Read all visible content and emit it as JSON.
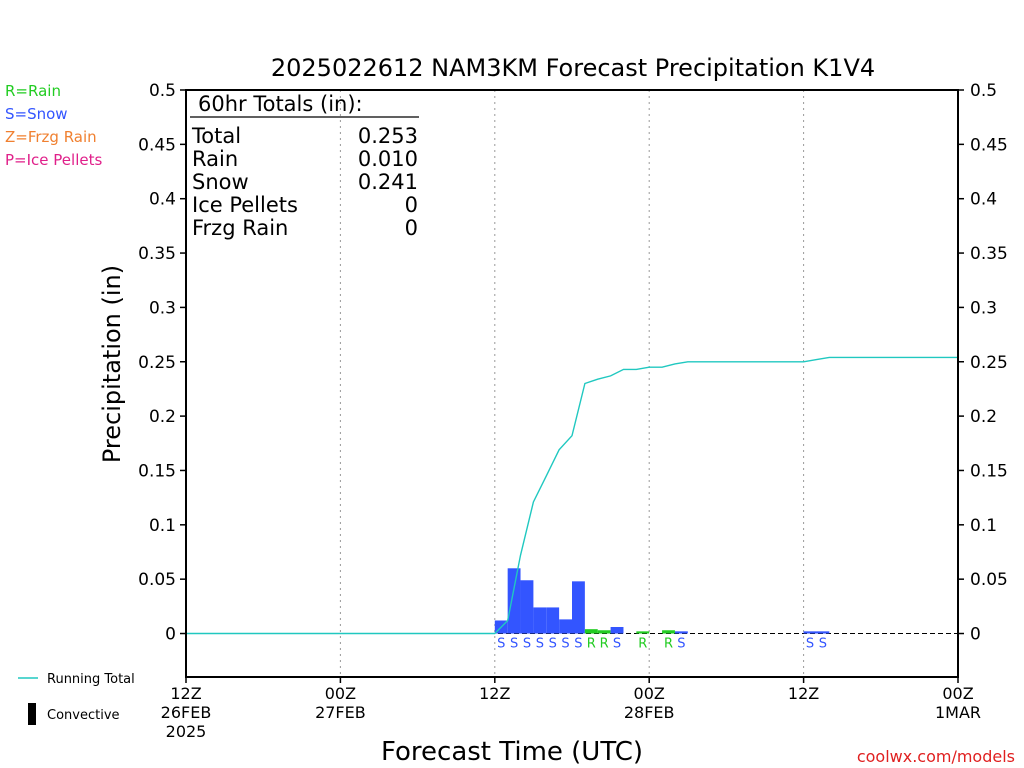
{
  "chart_data": {
    "type": "bar",
    "title": "2025022612 NAM3KM Forecast Precipitation K1V4",
    "ylabel": "Precipitation (in)",
    "xlabel": "Forecast Time (UTC)",
    "ylim": [
      -0.04,
      0.5
    ],
    "xlim_hours": [
      0,
      60
    ],
    "yticks": [
      "0.5",
      "0.45",
      "0.4",
      "0.35",
      "0.3",
      "0.25",
      "0.2",
      "0.15",
      "0.1",
      "0.05",
      "0"
    ],
    "ytick_values": [
      0.5,
      0.45,
      0.4,
      0.35,
      0.3,
      0.25,
      0.2,
      0.15,
      0.1,
      0.05,
      0
    ],
    "xticks": [
      {
        "hour": 0,
        "lines": [
          "12Z",
          "26FEB",
          "2025"
        ]
      },
      {
        "hour": 12,
        "lines": [
          "00Z",
          "27FEB"
        ]
      },
      {
        "hour": 24,
        "lines": [
          "12Z"
        ]
      },
      {
        "hour": 36,
        "lines": [
          "00Z",
          "28FEB"
        ]
      },
      {
        "hour": 48,
        "lines": [
          "12Z"
        ]
      },
      {
        "hour": 60,
        "lines": [
          "00Z",
          "1MAR"
        ]
      }
    ],
    "legend_types": [
      {
        "label": "R=Rain",
        "color": "#22cc22"
      },
      {
        "label": "S=Snow",
        "color": "#3355ff"
      },
      {
        "label": "Z=Frzg Rain",
        "color": "#f08030"
      },
      {
        "label": "P=Ice Pellets",
        "color": "#e0208a"
      }
    ],
    "legend_lines": [
      {
        "label": "Running Total",
        "color": "#20c8c0",
        "kind": "line"
      },
      {
        "label": "Convective",
        "color": "#000000",
        "kind": "bar"
      }
    ],
    "totals": {
      "heading": "60hr Totals (in):",
      "rows": [
        {
          "label": "Total",
          "value": "0.253"
        },
        {
          "label": "Rain",
          "value": "0.010"
        },
        {
          "label": "Snow",
          "value": "0.241"
        },
        {
          "label": "Ice Pellets",
          "value": "0"
        },
        {
          "label": "Frzg Rain",
          "value": "0"
        }
      ]
    },
    "bars": [
      {
        "hour": 25,
        "value": 0.012,
        "type": "S"
      },
      {
        "hour": 26,
        "value": 0.06,
        "type": "S"
      },
      {
        "hour": 27,
        "value": 0.049,
        "type": "S"
      },
      {
        "hour": 28,
        "value": 0.024,
        "type": "S"
      },
      {
        "hour": 29,
        "value": 0.024,
        "type": "S"
      },
      {
        "hour": 30,
        "value": 0.013,
        "type": "S"
      },
      {
        "hour": 31,
        "value": 0.048,
        "type": "S"
      },
      {
        "hour": 32,
        "value": 0.004,
        "type": "R"
      },
      {
        "hour": 33,
        "value": 0.003,
        "type": "R"
      },
      {
        "hour": 34,
        "value": 0.006,
        "type": "S"
      },
      {
        "hour": 36,
        "value": 0.002,
        "type": "R"
      },
      {
        "hour": 38,
        "value": 0.003,
        "type": "R"
      },
      {
        "hour": 39,
        "value": 0.002,
        "type": "S"
      },
      {
        "hour": 49,
        "value": 0.002,
        "type": "S"
      },
      {
        "hour": 50,
        "value": 0.002,
        "type": "S"
      }
    ],
    "running_total": {
      "hours": [
        0,
        24,
        25,
        26,
        27,
        28,
        29,
        30,
        31,
        32,
        33,
        34,
        35,
        36,
        37,
        38,
        39,
        40,
        41,
        42,
        43,
        44,
        45,
        46,
        47,
        48,
        49,
        50,
        51,
        52,
        53,
        54,
        55,
        56,
        57,
        58,
        59,
        60
      ],
      "values": [
        0,
        0,
        0.012,
        0.072,
        0.121,
        0.145,
        0.169,
        0.182,
        0.23,
        0.234,
        0.237,
        0.243,
        0.243,
        0.245,
        0.245,
        0.248,
        0.25,
        0.25,
        0.25,
        0.25,
        0.25,
        0.25,
        0.25,
        0.25,
        0.25,
        0.25,
        0.252,
        0.254,
        0.254,
        0.254,
        0.254,
        0.254,
        0.254,
        0.254,
        0.254,
        0.254,
        0.254,
        0.254
      ]
    },
    "grid": "dotted-vertical",
    "credit": "coolwx.com/models"
  }
}
